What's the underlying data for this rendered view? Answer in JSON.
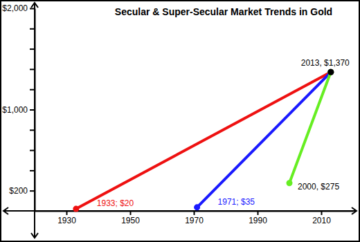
{
  "chart_data": {
    "type": "line",
    "title": "Secular & Super-Secular Market Trends in Gold",
    "series": [
      {
        "color": "#ee1111",
        "x": [
          1933,
          2013
        ],
        "values": [
          20,
          1370
        ],
        "marker": "circle"
      },
      {
        "color": "#1a1aff",
        "x": [
          1971,
          2013
        ],
        "values": [
          35,
          1370
        ],
        "marker": "circle"
      },
      {
        "color": "#66ee22",
        "x": [
          2000,
          2013
        ],
        "values": [
          275,
          1370
        ],
        "marker": "circle"
      }
    ],
    "xlim": [
      1920,
      2020
    ],
    "xticks": [
      1930,
      1950,
      1970,
      1990,
      2010
    ],
    "ylim": [
      0,
      2000
    ],
    "yticks": [
      {
        "value": 200,
        "label": "$200"
      },
      {
        "value": 400,
        "label": null
      },
      {
        "value": 600,
        "label": null
      },
      {
        "value": 800,
        "label": null
      },
      {
        "value": 1000,
        "label": "$1,000"
      },
      {
        "value": 1200,
        "label": null
      },
      {
        "value": 1400,
        "label": null
      },
      {
        "value": 1600,
        "label": null
      },
      {
        "value": 1800,
        "label": null
      },
      {
        "value": 2000,
        "label": "$2,000"
      }
    ],
    "grid": false,
    "annotations": [
      {
        "text": "1933; $20",
        "x": 1933,
        "y": 20,
        "color": "#ee1111"
      },
      {
        "text": "1971; $35",
        "x": 1971,
        "y": 35,
        "color": "#1a1aff"
      },
      {
        "text": "2000, $275",
        "x": 2000,
        "y": 275,
        "color": "#000000"
      },
      {
        "text": "2013, $1,370",
        "x": 2013,
        "y": 1370,
        "color": "#000000",
        "marker": "circle"
      }
    ]
  }
}
